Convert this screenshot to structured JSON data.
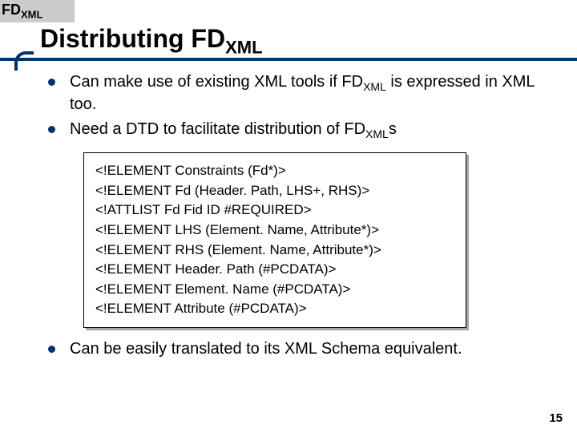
{
  "corner": {
    "prefix": "FD",
    "sub": "XML"
  },
  "title": {
    "prefix": "Distributing FD",
    "sub": "XML"
  },
  "bullets_top": [
    {
      "parts": [
        "Can make use of existing XML tools if FD",
        "XML",
        " is expressed in XML too."
      ]
    },
    {
      "parts": [
        "Need a DTD to facilitate distribution of FD",
        "XML",
        "s"
      ]
    }
  ],
  "code": [
    "<!ELEMENT Constraints (Fd*)>",
    "<!ELEMENT Fd (Header. Path, LHS+, RHS)>",
    "<!ATTLIST Fd Fid ID #REQUIRED>",
    "<!ELEMENT LHS (Element. Name, Attribute*)>",
    "<!ELEMENT RHS (Element. Name, Attribute*)>",
    "<!ELEMENT Header. Path (#PCDATA)>",
    "<!ELEMENT Element. Name (#PCDATA)>",
    "<!ELEMENT Attribute (#PCDATA)>"
  ],
  "bullets_bottom": [
    {
      "text": "Can be easily translated to its XML Schema equivalent."
    }
  ],
  "page_number": "15",
  "colors": {
    "accent": "#003366",
    "corner_bg": "#cccccc"
  }
}
